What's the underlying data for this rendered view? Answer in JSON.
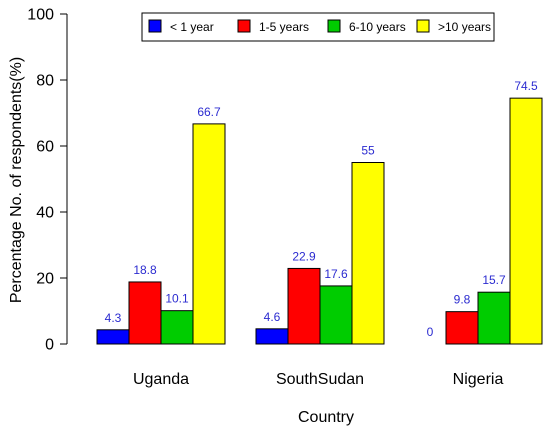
{
  "chart_data": {
    "type": "bar",
    "title": "",
    "xlabel": "Country",
    "ylabel": "Percentage No. of respondents(%)",
    "ylim": [
      0,
      100
    ],
    "yticks": [
      0,
      20,
      40,
      60,
      80,
      100
    ],
    "categories": [
      "Uganda",
      "SouthSudan",
      "Nigeria"
    ],
    "series": [
      {
        "name": "< 1 year",
        "color": "#0000ff",
        "values": [
          4.3,
          4.6,
          0
        ],
        "labels": [
          "4.3",
          "4.6",
          "0"
        ]
      },
      {
        "name": "1-5 years",
        "color": "#ff0000",
        "values": [
          18.8,
          22.9,
          9.8
        ],
        "labels": [
          "18.8",
          "22.9",
          "9.8"
        ]
      },
      {
        "name": "6-10 years",
        "color": "#00cc00",
        "values": [
          10.1,
          17.6,
          15.7
        ],
        "labels": [
          "10.1",
          "17.6",
          "15.7"
        ]
      },
      {
        "name": ">10 years",
        "color": "#ffff00",
        "values": [
          66.7,
          55,
          74.5
        ],
        "labels": [
          "66.7",
          "55",
          "74.5"
        ]
      }
    ],
    "legend_placement": "top",
    "grid": false
  }
}
